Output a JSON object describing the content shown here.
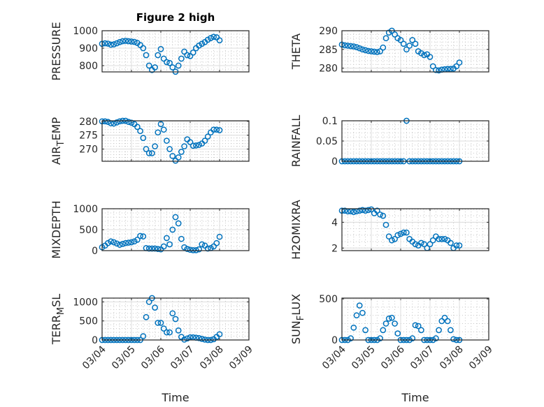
{
  "figure": {
    "title": "Figure 2 high"
  },
  "chart_data": {
    "type": "scatter",
    "title": "Figure 2 high",
    "xlabel": "Time",
    "marker_color": "#0072BD",
    "grid": "major+minor",
    "x_ticks": [
      0,
      1,
      2,
      3,
      4,
      5
    ],
    "x_tick_labels": [
      "03/04",
      "03/05",
      "03/06",
      "03/07",
      "03/08",
      "03/09"
    ],
    "xlim": [
      0,
      5
    ],
    "x": [
      0,
      0.1,
      0.2,
      0.3,
      0.4,
      0.5,
      0.6,
      0.7,
      0.8,
      0.9,
      1.0,
      1.1,
      1.2,
      1.3,
      1.4,
      1.5,
      1.6,
      1.7,
      1.8,
      1.9,
      2.0,
      2.1,
      2.2,
      2.3,
      2.4,
      2.5,
      2.6,
      2.7,
      2.8,
      2.9,
      3.0,
      3.1,
      3.2,
      3.3,
      3.4,
      3.5,
      3.6,
      3.7,
      3.8,
      3.9,
      4.0
    ],
    "panels": [
      {
        "ylabel": "PRESSURE",
        "ylim": [
          764,
          1000
        ],
        "yticks": [
          800,
          900,
          1000
        ],
        "yminor": 20,
        "values": [
          925,
          928,
          926,
          920,
          922,
          928,
          935,
          940,
          942,
          940,
          938,
          936,
          930,
          918,
          900,
          860,
          800,
          775,
          790,
          860,
          895,
          840,
          820,
          815,
          790,
          765,
          800,
          840,
          880,
          860,
          855,
          875,
          900,
          915,
          925,
          935,
          948,
          958,
          965,
          962,
          945
        ]
      },
      {
        "ylabel": "THETA",
        "ylim": [
          279,
          290
        ],
        "yticks": [
          280,
          285,
          290
        ],
        "yminor": 1,
        "values": [
          286.3,
          286.1,
          286,
          285.9,
          285.8,
          285.6,
          285.3,
          285,
          284.8,
          284.6,
          284.5,
          284.4,
          284.3,
          284.5,
          285.5,
          288,
          289.5,
          290,
          289,
          288,
          287.5,
          286.5,
          285,
          286,
          287.5,
          286.5,
          284.5,
          284,
          283.5,
          283.7,
          283,
          280.5,
          279.5,
          279.4,
          279.6,
          279.7,
          279.8,
          279.8,
          279.9,
          280.5,
          281.5
        ]
      },
      {
        "ylabel": "AIR_TEMP",
        "ylim": [
          265.6,
          280.2
        ],
        "yticks": [
          270,
          275,
          280
        ],
        "yminor": 1,
        "values": [
          280,
          280,
          279.8,
          279.3,
          279.2,
          279.6,
          280,
          280.3,
          280.2,
          279.8,
          279.5,
          279,
          278,
          276.5,
          274,
          270,
          268.5,
          268.5,
          271,
          276,
          279,
          277,
          273,
          270,
          267.5,
          265.8,
          267,
          269,
          271,
          273.5,
          272.5,
          271.2,
          271.3,
          271.5,
          272,
          273,
          274.5,
          276,
          277,
          277,
          276.8
        ]
      },
      {
        "ylabel": "RAINFALL",
        "ylim": [
          0,
          0.1
        ],
        "yticks": [
          0,
          0.05,
          0.1
        ],
        "yminor": 0.01,
        "values": [
          0,
          0,
          0,
          0,
          0,
          0,
          0,
          0,
          0,
          0,
          0,
          0,
          0,
          0,
          0,
          0,
          0,
          0,
          0,
          0,
          0,
          0,
          0.1,
          0,
          0,
          0,
          0,
          0,
          0,
          0,
          0,
          0,
          0,
          0,
          0,
          0,
          0,
          0,
          0,
          0,
          0
        ]
      },
      {
        "ylabel": "MIXDEPTH",
        "ylim": [
          0,
          1000
        ],
        "yticks": [
          0,
          500,
          1000
        ],
        "yminor": 100,
        "values": [
          80,
          120,
          180,
          220,
          200,
          170,
          140,
          160,
          180,
          190,
          200,
          220,
          260,
          350,
          340,
          60,
          50,
          50,
          50,
          40,
          30,
          100,
          300,
          150,
          500,
          800,
          650,
          280,
          80,
          40,
          20,
          10,
          10,
          30,
          150,
          120,
          50,
          60,
          100,
          180,
          330
        ]
      },
      {
        "ylabel": "H2OMIXRA",
        "ylim": [
          1.8,
          5.05
        ],
        "yticks": [
          2,
          4
        ],
        "yminor": 0.5,
        "values": [
          4.9,
          4.9,
          4.85,
          4.85,
          4.8,
          4.85,
          4.9,
          4.95,
          4.9,
          4.95,
          5.0,
          4.7,
          4.9,
          4.6,
          4.5,
          3.8,
          2.9,
          2.6,
          2.7,
          3.0,
          3.1,
          3.2,
          3.2,
          2.7,
          2.5,
          2.3,
          2.2,
          2.4,
          2.3,
          2.0,
          2.3,
          2.6,
          2.9,
          2.7,
          2.7,
          2.7,
          2.6,
          2.4,
          2.0,
          2.2,
          2.2
        ]
      },
      {
        "ylabel": "TERR_MSL",
        "ylim": [
          0,
          1100
        ],
        "yticks": [
          0,
          500,
          1000
        ],
        "yminor": 100,
        "values": [
          0,
          0,
          0,
          0,
          0,
          0,
          0,
          0,
          0,
          0,
          0,
          0,
          0,
          0,
          100,
          600,
          1000,
          1100,
          850,
          450,
          450,
          300,
          200,
          200,
          700,
          550,
          250,
          80,
          10,
          40,
          70,
          70,
          60,
          50,
          30,
          10,
          0,
          0,
          20,
          80,
          150
        ]
      },
      {
        "ylabel": "SUN_FLUX",
        "ylim": [
          0,
          510
        ],
        "yticks": [
          0,
          500
        ],
        "yminor": 100,
        "values": [
          0,
          0,
          0,
          20,
          150,
          300,
          420,
          330,
          120,
          0,
          0,
          0,
          0,
          20,
          120,
          200,
          260,
          270,
          200,
          80,
          0,
          0,
          0,
          0,
          20,
          180,
          170,
          120,
          0,
          0,
          0,
          0,
          20,
          120,
          230,
          270,
          230,
          120,
          10,
          0,
          0
        ]
      }
    ]
  }
}
